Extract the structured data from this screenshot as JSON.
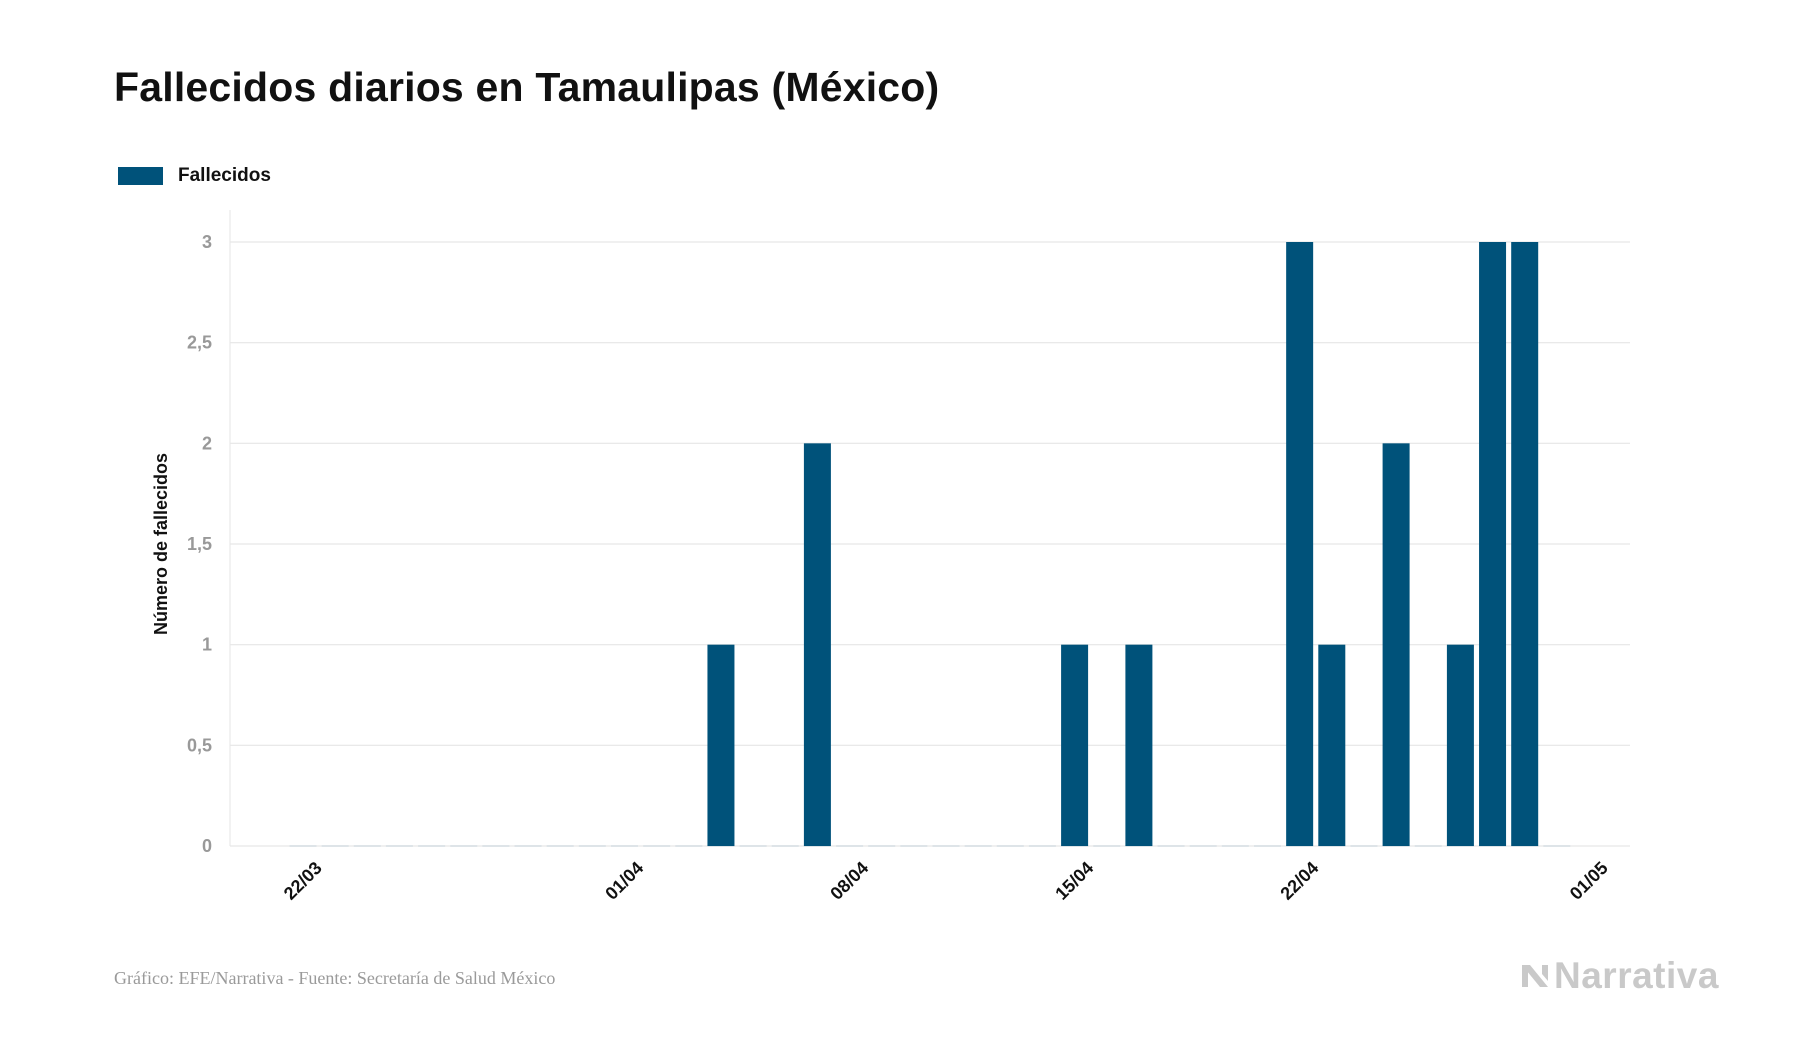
{
  "title": "Fallecidos diarios en Tamaulipas (México)",
  "footer": {
    "source": "Gráfico: EFE/Narrativa - Fuente: Secretaría de Salud México",
    "logo_text": "Narrativa"
  },
  "colors": {
    "bar": "#00527a",
    "grid": "#e6e6e6",
    "logo": "#c9c9c9"
  },
  "chart_data": {
    "type": "bar",
    "legend": [
      "Fallecidos"
    ],
    "ylabel": "Número de fallecidos",
    "xlabel": "",
    "ylim": [
      0,
      3
    ],
    "yticks": [
      "0",
      "0,5",
      "1",
      "1,5",
      "2",
      "2,5",
      "3"
    ],
    "x_tick_labels": [
      {
        "label": "22/03",
        "index": 0
      },
      {
        "label": "01/04",
        "index": 10
      },
      {
        "label": "08/04",
        "index": 17
      },
      {
        "label": "15/04",
        "index": 24
      },
      {
        "label": "22/04",
        "index": 31
      },
      {
        "label": "01/05",
        "index": 40
      }
    ],
    "grid": true,
    "legend_position": "top-left",
    "series": [
      {
        "name": "Fallecidos",
        "categories": [
          "22/03",
          "23/03",
          "24/03",
          "25/03",
          "26/03",
          "27/03",
          "28/03",
          "29/03",
          "30/03",
          "31/03",
          "01/04",
          "02/04",
          "03/04",
          "04/04",
          "05/04",
          "06/04",
          "07/04",
          "08/04",
          "09/04",
          "10/04",
          "11/04",
          "12/04",
          "13/04",
          "14/04",
          "15/04",
          "16/04",
          "17/04",
          "18/04",
          "19/04",
          "20/04",
          "21/04",
          "22/04",
          "23/04",
          "24/04",
          "25/04",
          "26/04",
          "27/04",
          "28/04",
          "29/04",
          "30/04"
        ],
        "values": [
          0,
          0,
          0,
          0,
          0,
          0,
          0,
          0,
          0,
          0,
          0,
          0,
          0,
          1,
          0,
          0,
          2,
          0,
          0,
          0,
          0,
          0,
          0,
          0,
          1,
          0,
          1,
          0,
          0,
          0,
          0,
          3,
          1,
          0,
          2,
          0,
          1,
          3,
          3,
          0
        ]
      }
    ]
  }
}
